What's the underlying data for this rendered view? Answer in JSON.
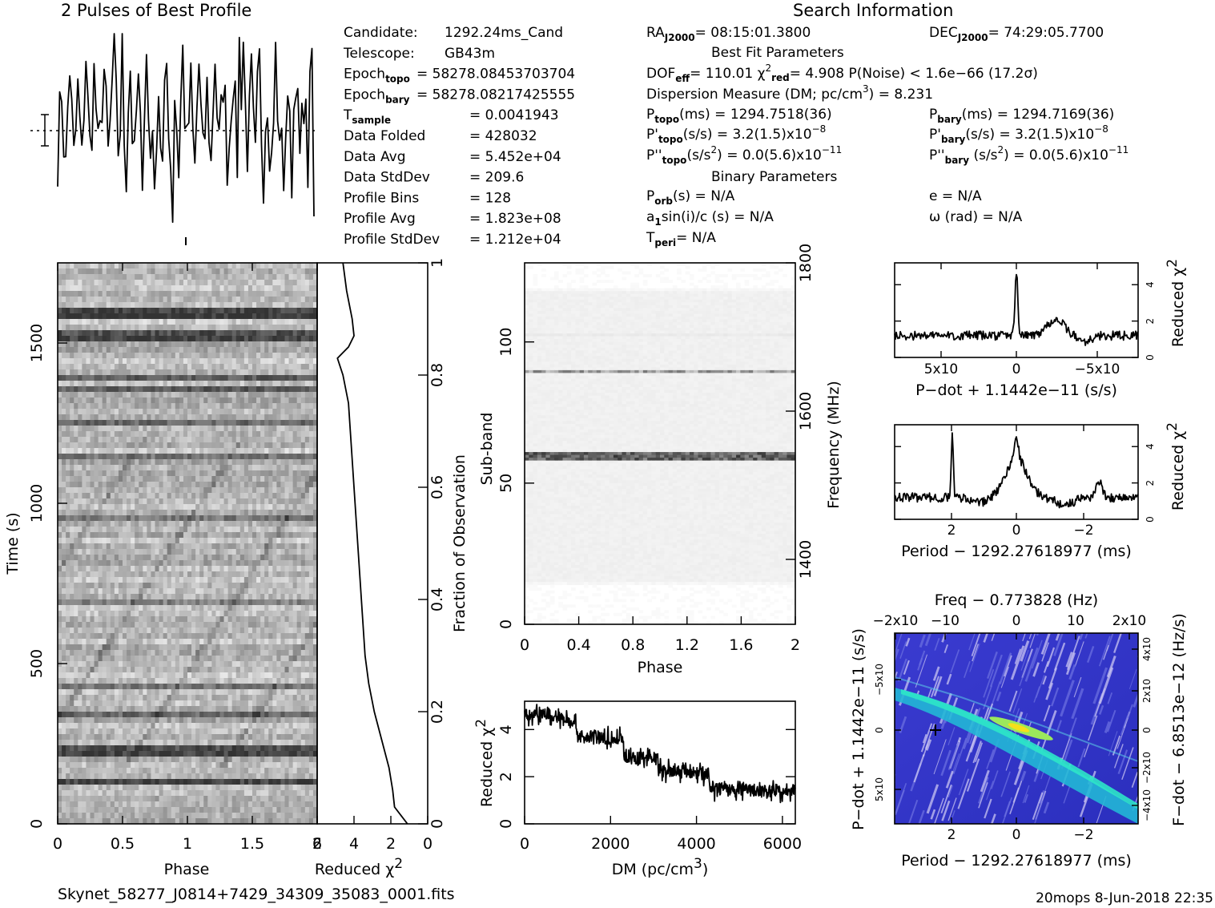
{
  "header": {
    "profile_title": "2 Pulses of Best Profile",
    "search_title": "Search Information",
    "best_fit_title": "Best Fit Parameters",
    "binary_title": "Binary Parameters"
  },
  "info": {
    "col1": [
      {
        "k": "Candidate:",
        "v": "1292.24ms_Cand"
      },
      {
        "k": "Telescope:",
        "v": "GB43m"
      },
      {
        "k": "Epoch",
        "sub": "topo",
        "v": "= 58278.08453703704"
      },
      {
        "k": "Epoch",
        "sub": "bary",
        "v": "= 58278.08217425555"
      },
      {
        "k": "T",
        "sub": "sample",
        "v": "=   0.0041943"
      },
      {
        "k": "Data Folded",
        "v": "=   428032"
      },
      {
        "k": "Data Avg",
        "v": "=   5.452e+04"
      },
      {
        "k": "Data StdDev",
        "v": "=   209.6"
      },
      {
        "k": "Profile Bins",
        "v": "=   128"
      },
      {
        "k": "Profile Avg",
        "v": "=   1.823e+08"
      },
      {
        "k": "Profile StdDev",
        "v": "=   1.212e+04"
      }
    ],
    "ra": "= 08:15:01.3800",
    "dec": "= 74:29:05.7700",
    "fit_line": "= 110.01   χ",
    "fit_red": "= 4.908   P(Noise) < 1.6e−66   (17.2σ)",
    "dm_line": "Dispersion Measure (DM; pc/cm",
    "dm_val": ") = 8.231",
    "p_topo": "(ms) =   1294.7518(36)",
    "p_bary": "(ms) =   1294.7169(36)",
    "pd_topo": "(s/s) =   3.2(1.5)x10",
    "pd_bary": "(s/s) =   3.2(1.5)x10",
    "pdd_topo": "(s/s",
    "pdd_topo_val": ") = 0.0(5.6)x10",
    "pdd_bary_val": ") = 0.0(5.6)x10",
    "porb": "(s) = N/A",
    "a1": "a",
    "a1_rest": "sin(i)/c (s) = N/A",
    "tperi": "= N/A",
    "ecc": "e = N/A",
    "omega": "ω (rad) = N/A"
  },
  "footer": {
    "filename": "Skynet_58277_J0814+7429_34309_35083_0001.fits",
    "stamp": "20mops   8-Jun-2018 22:35"
  },
  "chart_data": [
    {
      "type": "line",
      "title": "2 Pulses of Best Profile",
      "x_range": [
        0,
        2
      ],
      "description_values": {
        "samples": [
          0.38,
          0.55,
          0.72,
          0.46,
          0.28,
          0.61,
          0.84,
          0.57,
          0.33,
          0.49,
          0.7,
          0.52,
          0.31,
          0.64,
          0.9,
          0.6,
          0.4,
          0.55,
          0.78,
          0.62,
          0.36,
          0.44,
          0.67,
          0.81,
          0.58,
          0.35,
          0.5,
          0.73,
          0.97,
          0.62,
          0.41,
          0.53,
          0.76,
          0.48,
          0.3,
          0.66,
          0.83,
          0.5,
          0.29,
          0.58,
          0.71,
          0.46,
          0.34,
          0.63,
          0.87,
          0.55,
          0.38,
          0.6,
          0.05,
          0.55,
          0.72,
          0.46,
          0.28,
          0.61,
          0.84,
          0.57,
          0.33,
          0.49,
          0.7,
          0.52,
          0.31,
          0.64,
          0.9,
          0.6
        ]
      }
    },
    {
      "type": "heatmap",
      "xlabel": "Phase",
      "ylabel": "Time (s)",
      "x_ticks": [
        "0",
        "0.5",
        "1",
        "1.5",
        "2"
      ],
      "y_ticks": [
        "0",
        "500",
        "1000",
        "1500"
      ],
      "x_range": [
        0,
        2
      ],
      "y_range": [
        0,
        1750
      ]
    },
    {
      "type": "line",
      "xlabel": "Reduced χ",
      "right_label": "Fraction of Observation",
      "x_ticks": [
        "6",
        "4",
        "2",
        "0"
      ],
      "right_ticks": [
        "0",
        "0.2",
        "0.4",
        "0.6",
        "0.8",
        "1"
      ],
      "x_range": [
        6,
        0
      ],
      "values": [
        [
          0.0,
          1.1
        ],
        [
          0.03,
          1.8
        ],
        [
          0.06,
          1.9
        ],
        [
          0.1,
          2.1
        ],
        [
          0.15,
          2.5
        ],
        [
          0.2,
          2.9
        ],
        [
          0.25,
          3.2
        ],
        [
          0.3,
          3.4
        ],
        [
          0.35,
          3.5
        ],
        [
          0.4,
          3.6
        ],
        [
          0.45,
          3.7
        ],
        [
          0.5,
          3.8
        ],
        [
          0.55,
          3.9
        ],
        [
          0.6,
          4.0
        ],
        [
          0.65,
          4.1
        ],
        [
          0.7,
          4.2
        ],
        [
          0.75,
          4.3
        ],
        [
          0.8,
          4.6
        ],
        [
          0.83,
          4.9
        ],
        [
          0.85,
          4.3
        ],
        [
          0.87,
          4.0
        ],
        [
          0.9,
          4.1
        ],
        [
          0.95,
          4.4
        ],
        [
          1.0,
          4.6
        ]
      ]
    },
    {
      "type": "heatmap",
      "xlabel": "Phase",
      "ylabel": "Sub-band",
      "right_label": "Frequency (MHz)",
      "x_ticks": [
        "0",
        "0.4",
        "0.8",
        "1.2",
        "1.6",
        "2"
      ],
      "y_ticks": [
        "0",
        "50",
        "100"
      ],
      "right_ticks": [
        "1400",
        "1600",
        "1800"
      ],
      "x_range": [
        0,
        2
      ],
      "y_range": [
        0,
        128
      ],
      "dark_bands": [
        58,
        89,
        102
      ]
    },
    {
      "type": "line",
      "xlabel": "DM (pc/cm",
      "ylabel": "Reduced χ",
      "x_ticks": [
        "0",
        "2000",
        "4000",
        "6000"
      ],
      "y_ticks": [
        "0",
        "2",
        "4"
      ],
      "x_range": [
        0,
        6300
      ],
      "y_range": [
        0,
        5.2
      ]
    },
    {
      "type": "line",
      "xlabel": "P−dot + 1.1442e−11 (s/s)",
      "ylabel": "Reduced χ",
      "x_ticks": [
        "5x10",
        "0",
        "−5x10"
      ],
      "y_ticks": [
        "0",
        "2",
        "4"
      ],
      "y_range": [
        0,
        5.2
      ]
    },
    {
      "type": "line",
      "xlabel": "Period − 1292.27618977 (ms)",
      "ylabel": "Reduced χ",
      "x_ticks": [
        "2",
        "0",
        "−2"
      ],
      "y_ticks": [
        "0",
        "2",
        "4"
      ],
      "y_range": [
        0,
        5.2
      ]
    },
    {
      "type": "heatmap",
      "title": "Freq − 0.773828 (Hz)",
      "xlabel": "Period − 1292.27618977 (ms)",
      "ylabel": "P−dot + 1.1442e−11 (s/s)",
      "right_label": "F−dot − 6.8513e−12 (Hz/s)",
      "x_ticks": [
        "2",
        "0",
        "−2"
      ],
      "top_ticks": [
        "−2x10",
        "−10",
        "0",
        "10",
        "2x10"
      ],
      "y_ticks": [
        "−5x10",
        "0",
        "5x10"
      ],
      "right_ticks": [
        "4x10",
        "2x10",
        "0",
        "−2x10",
        "−4x10"
      ]
    }
  ]
}
